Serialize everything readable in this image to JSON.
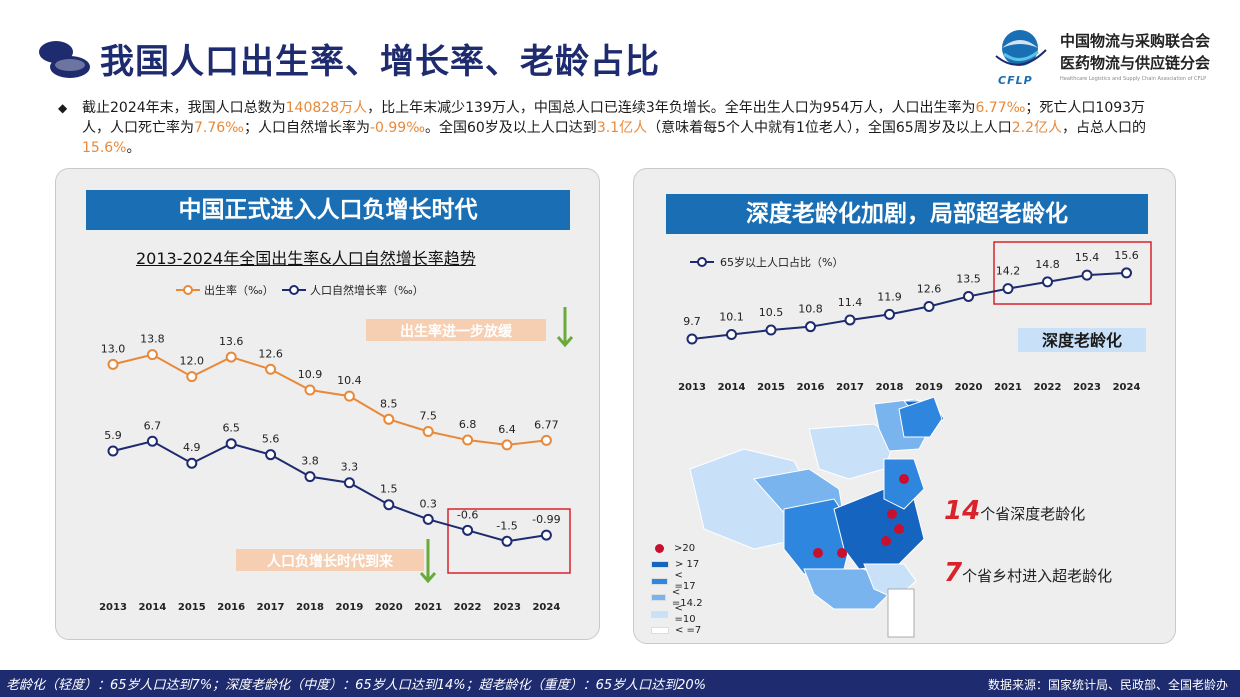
{
  "page": {
    "title": "我国人口出生率、增长率、老龄占比"
  },
  "org": {
    "name_line1": "中国物流与采购联合会",
    "name_line2": "医药物流与供应链分会",
    "english": "Healthcare Logistics and Supply Chain Association of CFLP",
    "abbr": "CFLP"
  },
  "summary": {
    "bullet": "◆",
    "parts": [
      {
        "t": "截止2024年末，我国人口总数为",
        "h": false
      },
      {
        "t": "140828万人",
        "h": true
      },
      {
        "t": "，比上年末减少139万人，中国总人口已连续3年负增长。全年出生人口为954万人，人口出生率为",
        "h": false
      },
      {
        "t": "6.77‰",
        "h": true
      },
      {
        "t": "；死亡人口1093万人，人口死亡率为",
        "h": false
      },
      {
        "t": "7.76‰",
        "h": true
      },
      {
        "t": "；人口自然增长率为",
        "h": false
      },
      {
        "t": "-0.99‰",
        "h": true
      },
      {
        "t": "。全国60岁及以上人口达到",
        "h": false
      },
      {
        "t": "3.1亿人",
        "h": true
      },
      {
        "t": "（意味着每5个人中就有1位老人），全国65周岁及以上人口",
        "h": false
      },
      {
        "t": "2.2亿人",
        "h": true
      },
      {
        "t": "，占总人口的",
        "h": false
      },
      {
        "t": "15.6%",
        "h": true
      },
      {
        "t": "。",
        "h": false
      }
    ]
  },
  "left_panel": {
    "banner": "中国正式进入人口负增长时代",
    "chart_title": "2013-2024年全国出生率&人口自然增长率趋势",
    "tag_birth": "出生率进一步放缓",
    "tag_negative": "人口负增长时代到来"
  },
  "right_panel": {
    "banner": "深度老龄化加剧，局部超老龄化",
    "tag_deep": "深度老龄化",
    "stat1_num": "14",
    "stat1_text": "个省深度老龄化",
    "stat2_num": "7",
    "stat2_text": "个省乡村进入超老龄化",
    "map_legend": [
      {
        "label": ">20",
        "color": "#c8102e",
        "shape": "dot"
      },
      {
        "label": "> 17",
        "color": "#1565c0",
        "shape": "rect"
      },
      {
        "label": "< =17",
        "color": "#2f86de",
        "shape": "rect"
      },
      {
        "label": "< =14.2",
        "color": "#79b4ee",
        "shape": "rect"
      },
      {
        "label": "< =10",
        "color": "#c9e1f8",
        "shape": "rect"
      },
      {
        "label": "< =7",
        "color": "#ffffff",
        "shape": "rect"
      }
    ]
  },
  "chart_data": [
    {
      "type": "line",
      "title": "2013-2024年全国出生率&人口自然增长率趋势",
      "categories": [
        "2013",
        "2014",
        "2015",
        "2016",
        "2017",
        "2018",
        "2019",
        "2020",
        "2021",
        "2022",
        "2023",
        "2024"
      ],
      "series": [
        {
          "name": "出生率（‰）",
          "color": "#e8893a",
          "values": [
            13.0,
            13.8,
            12.0,
            13.6,
            12.6,
            10.9,
            10.4,
            8.5,
            7.5,
            6.8,
            6.4,
            6.77
          ],
          "labels": [
            "13.0",
            "13.8",
            "12.0",
            "13.6",
            "12.6",
            "10.9",
            "10.4",
            "8.5",
            "7.5",
            "6.8",
            "6.4",
            "6.77"
          ]
        },
        {
          "name": "人口自然增长率（‰）",
          "color": "#1e2b6e",
          "values": [
            5.9,
            6.7,
            4.9,
            6.5,
            5.6,
            3.8,
            3.3,
            1.5,
            0.3,
            -0.6,
            -1.5,
            -0.99
          ],
          "labels": [
            "5.9",
            "6.7",
            "4.9",
            "6.5",
            "5.6",
            "3.8",
            "3.3",
            "1.5",
            "0.3",
            "-0.6",
            "-1.5",
            "-0.99"
          ]
        }
      ],
      "legend_position": "top"
    },
    {
      "type": "line",
      "categories": [
        "2013",
        "2014",
        "2015",
        "2016",
        "2017",
        "2018",
        "2019",
        "2020",
        "2021",
        "2022",
        "2023",
        "2024"
      ],
      "series": [
        {
          "name": "65岁以上人口占比（%）",
          "color": "#1e2b6e",
          "values": [
            9.7,
            10.1,
            10.5,
            10.8,
            11.4,
            11.9,
            12.6,
            13.5,
            14.2,
            14.8,
            15.4,
            15.6
          ],
          "labels": [
            "9.7",
            "10.1",
            "10.5",
            "10.8",
            "11.4",
            "11.9",
            "12.6",
            "13.5",
            "14.2",
            "14.8",
            "15.4",
            "15.6"
          ]
        }
      ],
      "legend_position": "top-left"
    }
  ],
  "footer": {
    "note": "老龄化（轻度）：65岁人口达到7%；深度老龄化（中度）：65岁人口达到14%；超老龄化（重度）：65岁人口达到20%",
    "source": "数据来源：国家统计局、民政部、全国老龄办"
  }
}
